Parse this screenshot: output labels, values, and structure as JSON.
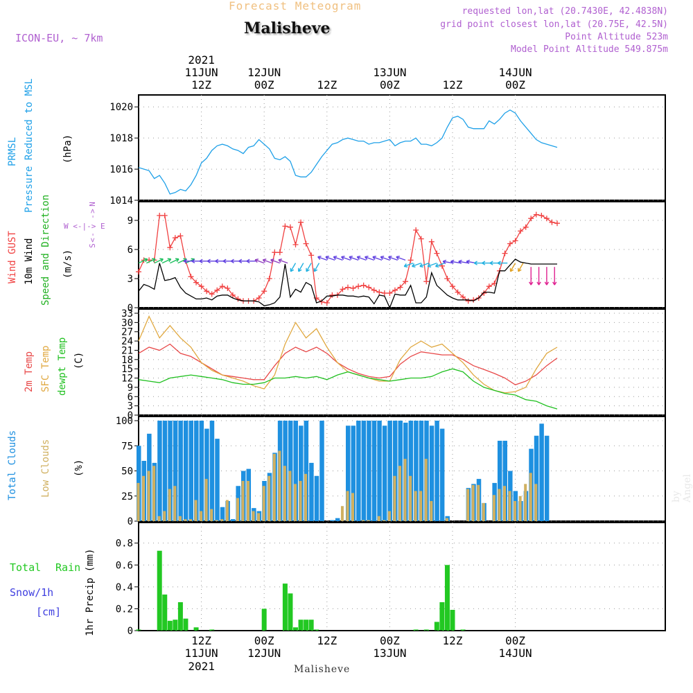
{
  "header": {
    "product": "Forecast Meteogram",
    "location": "Malisheve",
    "model": "ICON-EU, ~ 7km",
    "requested": "requested lon,lat (20.7430E, 42.4838N)",
    "gridpoint": "grid point closest lon,lat (20.75E, 42.5N)",
    "point_alt": "Point Altitude 523m",
    "model_alt": "Model Point Altitude 549.875m"
  },
  "time_axis": {
    "top_year": "2021",
    "ticks": [
      {
        "h": 12,
        "l1": "11JUN",
        "l2": "12Z"
      },
      {
        "h": 24,
        "l1": "12JUN",
        "l2": "00Z"
      },
      {
        "h": 36,
        "l1": "",
        "l2": "12Z"
      },
      {
        "h": 48,
        "l1": "13JUN",
        "l2": "00Z"
      },
      {
        "h": 60,
        "l1": "",
        "l2": "12Z"
      },
      {
        "h": 72,
        "l1": "14JUN",
        "l2": "00Z"
      }
    ],
    "bottom_ticks": [
      {
        "h": 12,
        "l1": "12Z",
        "l2": "11JUN",
        "l3": "2021"
      },
      {
        "h": 24,
        "l1": "00Z",
        "l2": "12JUN",
        "l3": ""
      },
      {
        "h": 36,
        "l1": "12Z",
        "l2": "",
        "l3": ""
      },
      {
        "h": 48,
        "l1": "00Z",
        "l2": "13JUN",
        "l3": ""
      },
      {
        "h": 60,
        "l1": "12Z",
        "l2": "",
        "l3": ""
      },
      {
        "h": 72,
        "l1": "00Z",
        "l2": "14JUN",
        "l3": ""
      }
    ]
  },
  "labels": {
    "p_prmsl": "PRMSL",
    "p_pressure": "Pressure Reduced to MSL",
    "p_unit": "(hPa)",
    "w_gust": "Wind GUST",
    "w_10m": "10m Wind",
    "w_speeddir": "Speed and Direction",
    "w_unit": "(m/s)",
    "compass_n": "N",
    "compass_s": "S",
    "compass_we": "W <-|-> E",
    "t_2m": "2m Temp",
    "t_sfc": "SFC Temp",
    "t_dew": "dewpt Temp",
    "t_unit": "(C)",
    "c_total": "Total Clouds",
    "c_low": "Low Clouds",
    "c_unit": "(%)",
    "r_total": "Total",
    "r_rain": "Rain",
    "r_snow": "Snow/1h",
    "r_cm": "[cm]",
    "r_axis": "1hr Precip (mm)",
    "footer_loc": "Malisheve",
    "byline": "by Angel"
  },
  "colors": {
    "pressure": "#1ea0e8",
    "gust": "#f04040",
    "wind": "#000000",
    "t2m": "#e84848",
    "sfc": "#e0a840",
    "dew": "#20c020",
    "total_cloud": "#1e90e0",
    "low_cloud": "#d0b060",
    "rain": "#22c822",
    "snow": "#4040e0",
    "label_purple": "#b060d0"
  },
  "chart_data": [
    {
      "type": "line",
      "panel": "pressure",
      "ylabel": "PRMSL Pressure Reduced to MSL (hPa)",
      "ylim": [
        1014,
        1020.5
      ],
      "yticks": [
        1014,
        1016,
        1018,
        1020
      ],
      "x_hours": [
        0,
        2,
        3,
        4,
        5,
        6,
        7,
        8,
        9,
        10,
        11,
        12,
        13,
        14,
        15,
        16,
        17,
        18,
        19,
        20,
        21,
        22,
        23,
        24,
        25,
        26,
        27,
        28,
        29,
        30,
        31,
        32,
        33,
        34,
        35,
        36,
        37,
        38,
        39,
        40,
        41,
        42,
        43,
        44,
        45,
        46,
        47,
        48,
        49,
        50,
        51,
        52,
        53,
        54,
        55,
        56,
        57,
        58,
        59,
        60,
        61,
        62,
        63,
        64,
        65,
        66,
        67,
        68,
        69,
        70,
        71,
        72,
        73,
        74,
        75,
        76,
        77,
        78,
        79,
        80
      ],
      "series": [
        {
          "name": "PRMSL",
          "values": [
            1016.1,
            1015.9,
            1015.4,
            1015.6,
            1015.1,
            1014.4,
            1014.5,
            1014.7,
            1014.6,
            1015.0,
            1015.6,
            1016.4,
            1016.7,
            1017.2,
            1017.5,
            1017.6,
            1017.5,
            1017.3,
            1017.2,
            1017.0,
            1017.4,
            1017.5,
            1017.9,
            1017.6,
            1017.3,
            1016.7,
            1016.6,
            1016.8,
            1016.5,
            1015.6,
            1015.5,
            1015.5,
            1015.8,
            1016.3,
            1016.8,
            1017.2,
            1017.6,
            1017.7,
            1017.9,
            1018.0,
            1017.9,
            1017.8,
            1017.8,
            1017.6,
            1017.7,
            1017.7,
            1017.8,
            1017.9,
            1017.5,
            1017.7,
            1017.8,
            1017.8,
            1018.0,
            1017.6,
            1017.6,
            1017.5,
            1017.7,
            1018.0,
            1018.7,
            1019.3,
            1019.4,
            1019.2,
            1018.7,
            1018.6,
            1018.6,
            1018.6,
            1019.1,
            1018.9,
            1019.2,
            1019.6,
            1019.8,
            1019.6,
            1019.1,
            1018.7,
            1018.3,
            1017.9,
            1017.7,
            1017.6,
            1017.5,
            1017.4
          ]
        }
      ]
    },
    {
      "type": "line",
      "panel": "wind",
      "ylabel": "Wind GUST / 10m Wind Speed and Direction (m/s)",
      "ylim": [
        0,
        10.5
      ],
      "yticks": [
        0,
        3,
        6,
        9
      ],
      "x_hours": [
        0,
        1,
        2,
        3,
        4,
        5,
        6,
        7,
        8,
        9,
        10,
        11,
        12,
        13,
        14,
        15,
        16,
        17,
        18,
        19,
        20,
        21,
        22,
        23,
        24,
        25,
        26,
        27,
        28,
        29,
        30,
        31,
        32,
        33,
        34,
        35,
        36,
        37,
        38,
        39,
        40,
        41,
        42,
        43,
        44,
        45,
        46,
        47,
        48,
        49,
        50,
        51,
        52,
        53,
        54,
        55,
        56,
        57,
        58,
        59,
        60,
        61,
        62,
        63,
        64,
        65,
        66,
        67,
        68,
        69,
        70,
        71,
        72,
        73,
        74,
        75,
        76,
        77,
        78,
        79,
        80
      ],
      "series": [
        {
          "name": "Wind GUST",
          "values": [
            3.7,
            4.9,
            4.9,
            4.9,
            9.5,
            9.5,
            6.2,
            7.2,
            7.4,
            4.8,
            3.2,
            2.6,
            2.2,
            1.7,
            1.4,
            1.8,
            2.2,
            2.0,
            1.3,
            0.9,
            0.7,
            0.7,
            0.7,
            1.0,
            1.7,
            3.0,
            5.7,
            5.7,
            8.4,
            8.3,
            6.5,
            8.8,
            6.6,
            5.4,
            1.0,
            0.6,
            0.5,
            1.3,
            1.3,
            1.9,
            2.1,
            2.0,
            2.2,
            2.3,
            2.1,
            1.8,
            1.6,
            1.5,
            1.5,
            1.8,
            2.1,
            2.7,
            4.9,
            8.0,
            7.1,
            2.7,
            6.8,
            5.6,
            4.3,
            3.0,
            2.2,
            1.6,
            1.1,
            0.7,
            0.8,
            1.0,
            1.5,
            2.2,
            2.5,
            3.8,
            5.6,
            6.6,
            6.9,
            7.9,
            8.3,
            9.2,
            9.6,
            9.5,
            9.2,
            8.8,
            8.7
          ],
          "markers": "plus"
        },
        {
          "name": "10m Wind",
          "values": [
            1.7,
            2.4,
            2.2,
            1.9,
            4.6,
            2.8,
            2.9,
            3.1,
            2.1,
            1.5,
            1.2,
            0.9,
            0.9,
            1.0,
            0.8,
            1.2,
            1.3,
            1.3,
            1.0,
            0.8,
            0.7,
            0.7,
            0.7,
            0.6,
            0.2,
            0.3,
            0.5,
            1.1,
            4.5,
            1.1,
            1.9,
            1.6,
            2.6,
            2.3,
            0.5,
            0.7,
            1.2,
            1.2,
            1.3,
            1.3,
            1.2,
            1.2,
            1.1,
            1.2,
            1.1,
            0.4,
            1.3,
            1.2,
            0.0,
            1.4,
            1.3,
            1.3,
            2.3,
            0.5,
            0.5,
            1.1,
            3.6,
            2.3,
            1.8,
            1.3,
            1.0,
            0.8,
            0.8,
            0.8,
            0.7,
            1.0,
            1.6,
            1.6,
            1.5,
            3.8,
            3.8,
            4.4,
            5.0,
            4.7,
            4.6,
            4.5,
            4.5,
            4.5,
            4.5,
            4.5,
            4.5
          ]
        }
      ]
    },
    {
      "type": "line",
      "panel": "temperature",
      "ylabel": "2m Temp / SFC Temp / dewpt Temp (C)",
      "ylim": [
        0,
        33
      ],
      "yticks": [
        0,
        3,
        6,
        9,
        12,
        15,
        18,
        21,
        24,
        27,
        30,
        33
      ],
      "x_hours": [
        0,
        2,
        4,
        6,
        8,
        10,
        12,
        14,
        16,
        18,
        20,
        22,
        24,
        26,
        28,
        30,
        32,
        34,
        36,
        38,
        40,
        42,
        44,
        46,
        48,
        50,
        52,
        54,
        56,
        58,
        60,
        62,
        64,
        66,
        68,
        70,
        72,
        74,
        76,
        78,
        80
      ],
      "series": [
        {
          "name": "2m Temp",
          "values": [
            20,
            22,
            21,
            23,
            20,
            19,
            17,
            15,
            13,
            12.5,
            12,
            11.5,
            11.5,
            16,
            20,
            22,
            20.5,
            22,
            20,
            17,
            15,
            13.5,
            12.5,
            12,
            12.5,
            16.5,
            19,
            20.5,
            20,
            19.5,
            19.5,
            18,
            16,
            14.8,
            13.5,
            12,
            9.8,
            11,
            13,
            16,
            18.5
          ]
        },
        {
          "name": "SFC Temp",
          "values": [
            24,
            32,
            25,
            29,
            25,
            22,
            17,
            14.5,
            13,
            12,
            11,
            9.5,
            8.5,
            13,
            23,
            30,
            25,
            28,
            22,
            17,
            14,
            13,
            12,
            11,
            11,
            18,
            22,
            24,
            22,
            23,
            20,
            17,
            13,
            10,
            8,
            7.2,
            7.6,
            9,
            15,
            20,
            22
          ]
        },
        {
          "name": "dewpt Temp",
          "values": [
            11.5,
            11,
            10.5,
            12,
            12.5,
            13,
            12.5,
            12,
            11.5,
            10.5,
            10,
            10,
            10.5,
            12,
            12,
            12.5,
            12,
            12.5,
            11.5,
            13,
            14,
            13,
            12,
            11.5,
            11,
            11.5,
            12,
            12,
            12.5,
            14,
            15,
            14,
            11,
            9,
            8,
            7,
            6.5,
            5,
            4.5,
            3,
            2
          ]
        }
      ]
    },
    {
      "type": "bar",
      "panel": "clouds",
      "ylabel": "Total Clouds / Low Clouds (%)",
      "ylim": [
        0,
        100
      ],
      "yticks": [
        0,
        25,
        50,
        75,
        100
      ],
      "x_hours": [
        0,
        1,
        2,
        3,
        4,
        5,
        6,
        7,
        8,
        9,
        10,
        11,
        12,
        13,
        14,
        15,
        16,
        17,
        18,
        19,
        20,
        21,
        22,
        23,
        24,
        25,
        26,
        27,
        28,
        29,
        30,
        31,
        32,
        33,
        34,
        35,
        36,
        37,
        38,
        39,
        40,
        41,
        42,
        43,
        44,
        45,
        46,
        47,
        48,
        49,
        50,
        51,
        52,
        53,
        54,
        55,
        56,
        57,
        58,
        59,
        60,
        61,
        62,
        63,
        64,
        65,
        66,
        67,
        68,
        69,
        70,
        71,
        72,
        73,
        74,
        75,
        76,
        77,
        78,
        79,
        80
      ],
      "series": [
        {
          "name": "Total Clouds",
          "values": [
            75,
            60,
            87,
            58,
            100,
            100,
            100,
            100,
            100,
            100,
            100,
            100,
            100,
            92,
            100,
            82,
            14,
            20,
            2,
            35,
            50,
            52,
            13,
            10,
            40,
            48,
            68,
            100,
            100,
            100,
            100,
            95,
            100,
            58,
            45,
            100,
            0,
            1,
            3,
            0,
            95,
            95,
            100,
            100,
            100,
            100,
            100,
            95,
            100,
            100,
            100,
            98,
            100,
            100,
            100,
            100,
            95,
            100,
            92,
            5,
            0,
            0,
            0,
            33,
            37,
            42,
            18,
            0,
            38,
            80,
            80,
            50,
            30,
            20,
            30,
            72,
            85,
            97,
            85,
            0,
            0
          ],
          "color": "total"
        },
        {
          "name": "Low Clouds",
          "values": [
            38,
            45,
            50,
            55,
            5,
            10,
            32,
            35,
            5,
            2,
            2,
            21,
            10,
            42,
            12,
            1,
            2,
            21,
            0,
            23,
            40,
            40,
            10,
            8,
            35,
            45,
            67,
            70,
            55,
            50,
            37,
            40,
            47,
            0,
            0,
            0,
            0,
            0,
            0,
            15,
            30,
            28,
            0,
            1,
            1,
            0,
            5,
            1,
            10,
            45,
            55,
            62,
            45,
            30,
            30,
            62,
            20,
            0,
            0,
            3,
            0,
            0,
            0,
            32,
            36,
            36,
            18,
            0,
            26,
            32,
            35,
            30,
            20,
            25,
            37,
            48,
            37,
            0,
            0,
            0,
            0
          ],
          "color": "low"
        }
      ]
    },
    {
      "type": "bar",
      "panel": "precip",
      "ylabel": "1hr Precip (mm)",
      "ylim": [
        0,
        0.95
      ],
      "yticks": [
        0,
        0.2,
        0.4,
        0.6,
        0.8
      ],
      "x_hours": [
        0,
        1,
        2,
        3,
        4,
        5,
        6,
        7,
        8,
        9,
        10,
        11,
        12,
        13,
        14,
        15,
        16,
        17,
        18,
        19,
        20,
        21,
        22,
        23,
        24,
        25,
        26,
        27,
        28,
        29,
        30,
        31,
        32,
        33,
        34,
        35,
        36,
        37,
        38,
        39,
        40,
        41,
        42,
        43,
        44,
        45,
        46,
        47,
        48,
        49,
        50,
        51,
        52,
        53,
        54,
        55,
        56,
        57,
        58,
        59,
        60,
        61,
        62,
        63,
        64,
        65,
        66,
        67,
        68,
        69,
        70,
        71,
        72,
        73,
        74,
        75,
        76,
        77,
        78,
        79,
        80
      ],
      "series": [
        {
          "name": "Total Rain",
          "values": [
            0.01,
            0,
            0,
            0,
            0.73,
            0.33,
            0.09,
            0.1,
            0.26,
            0.11,
            0,
            0.03,
            0,
            0,
            0.01,
            0,
            0,
            0,
            0,
            0,
            0,
            0,
            0,
            0,
            0.2,
            0,
            0,
            0,
            0.43,
            0.34,
            0.03,
            0.1,
            0.1,
            0.1,
            0.01,
            0,
            0,
            0,
            0,
            0,
            0,
            0,
            0,
            0,
            0,
            0,
            0,
            0,
            0,
            0,
            0,
            0,
            0,
            0.01,
            0,
            0.01,
            0,
            0.08,
            0.26,
            0.6,
            0.19,
            0,
            0.01,
            0,
            0,
            0,
            0,
            0,
            0,
            0,
            0,
            0,
            0,
            0,
            0,
            0,
            0,
            0,
            0,
            0,
            0
          ]
        }
      ]
    }
  ]
}
